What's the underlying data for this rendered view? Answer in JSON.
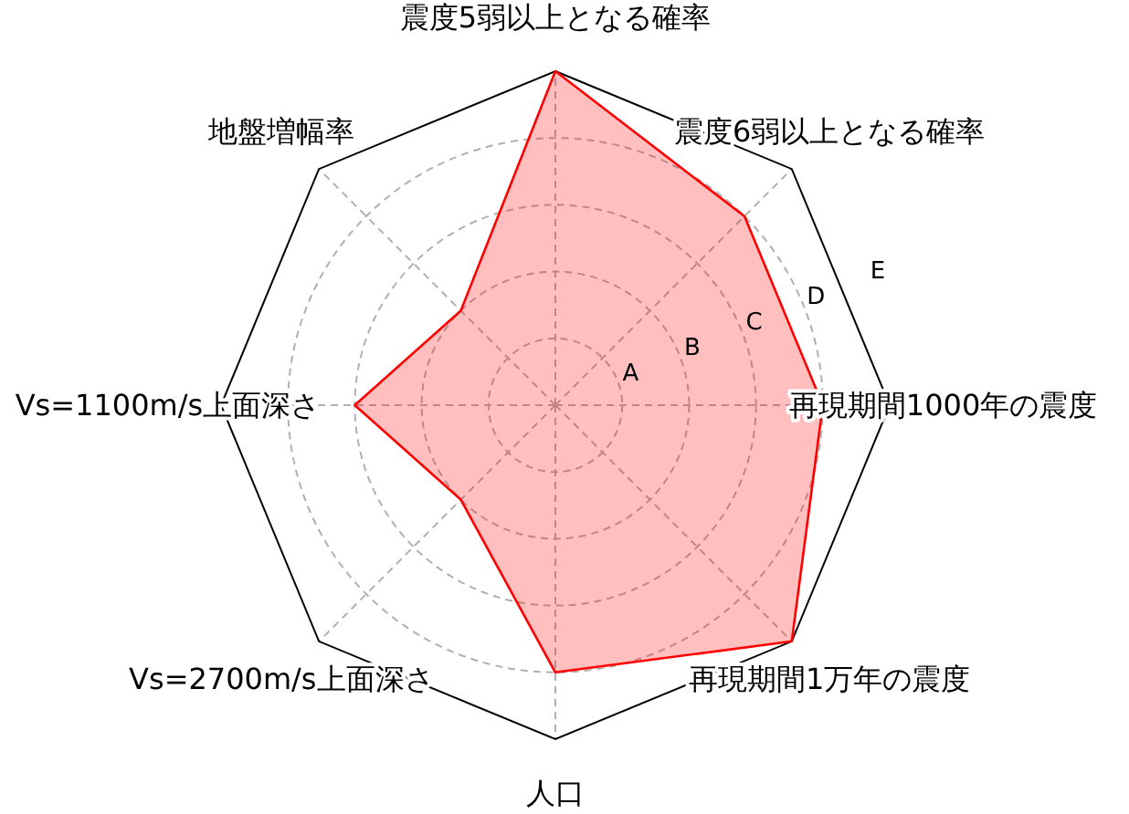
{
  "chart_data": {
    "type": "radar",
    "categories": [
      "震度5弱以上となる確率",
      "震度6弱以上となる確率",
      "再現期間1000年の震度",
      "再現期間1万年の震度",
      "人口",
      "Vs=2700m/s上面深さ",
      "Vs=1100m/s上面深さ",
      "地盤増幅率"
    ],
    "series": [
      {
        "color": "#ff0000",
        "values": [
          5,
          4,
          4,
          5,
          4,
          2,
          3,
          2
        ]
      }
    ],
    "ylim": [
      0,
      5
    ],
    "yticks": [
      {
        "value": 1,
        "label": "A"
      },
      {
        "value": 2,
        "label": "B"
      },
      {
        "value": 3,
        "label": "C"
      },
      {
        "value": 4,
        "label": "D"
      },
      {
        "value": 5,
        "label": "E"
      }
    ],
    "grid": true
  }
}
